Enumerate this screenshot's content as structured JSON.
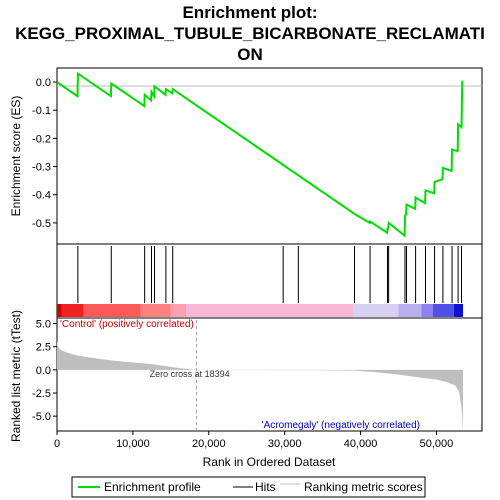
{
  "title_lines": [
    "Enrichment plot:",
    "KEGG_PROXIMAL_TUBULE_BICARBONATE_RECLAMATI",
    "ON"
  ],
  "colors": {
    "enrichment_line": "#00dd00",
    "hits": "#000000",
    "metric_fill": "#bebebe",
    "positive_label": "#cc0000",
    "negative_label": "#0000cc"
  },
  "chart_data": [
    {
      "type": "line",
      "panel": "enrichment",
      "ylabel": "Enrichment score (ES)",
      "ylim": [
        -0.575,
        0.05
      ],
      "yticks": [
        "0.0",
        "-0.1",
        "-0.2",
        "-0.3",
        "-0.4",
        "-0.5"
      ],
      "ytick_values": [
        0.0,
        -0.1,
        -0.2,
        -0.3,
        -0.4,
        -0.5
      ],
      "x": [
        0,
        2700,
        2750,
        7100,
        7150,
        11500,
        11550,
        12400,
        12450,
        12800,
        12850,
        14300,
        14350,
        15200,
        15250,
        39300,
        41200,
        41250,
        43500,
        43550,
        43650,
        43700,
        45800,
        45850,
        46000,
        46050,
        47200,
        47250,
        48500,
        48550,
        49700,
        49750,
        50800,
        50850,
        52000,
        52050,
        52800,
        52850,
        53300,
        53400
      ],
      "y": [
        0.0,
        -0.05,
        0.03,
        -0.05,
        -0.005,
        -0.085,
        -0.045,
        -0.065,
        -0.035,
        -0.05,
        -0.015,
        -0.045,
        -0.025,
        -0.04,
        -0.025,
        -0.47,
        -0.5,
        -0.495,
        -0.535,
        -0.52,
        -0.52,
        -0.5,
        -0.545,
        -0.475,
        -0.47,
        -0.435,
        -0.45,
        -0.41,
        -0.43,
        -0.385,
        -0.395,
        -0.355,
        -0.345,
        -0.305,
        -0.315,
        -0.24,
        -0.245,
        -0.15,
        -0.16,
        0.005
      ]
    },
    {
      "type": "scatter",
      "panel": "hits",
      "x": [
        2750,
        7150,
        11550,
        12450,
        12850,
        14350,
        15250,
        29800,
        31800,
        39200,
        41250,
        43550,
        43700,
        45850,
        46050,
        47250,
        48550,
        49750,
        50850,
        52050,
        52850,
        53300
      ]
    },
    {
      "type": "area",
      "panel": "ranked_metric",
      "xlabel": "Rank in Ordered Dataset",
      "ylabel": "Ranked list metric (tTest)",
      "xlim": [
        0,
        56000
      ],
      "ylim": [
        -6.6,
        5.6
      ],
      "xticks": [
        "0",
        "10,000",
        "20,000",
        "30,000",
        "40,000",
        "50,000"
      ],
      "xtick_values": [
        0,
        10000,
        20000,
        30000,
        40000,
        50000
      ],
      "yticks": [
        "5.0",
        "2.5",
        "0.0",
        "-2.5",
        "-5.0"
      ],
      "ytick_values": [
        5.0,
        2.5,
        0.0,
        -2.5,
        -5.0
      ],
      "x": [
        0,
        100,
        300,
        600,
        1000,
        2000,
        3000,
        4500,
        6000,
        8000,
        10000,
        12000,
        14000,
        16000,
        18394,
        20000,
        25000,
        30000,
        35000,
        39000,
        42000,
        45000,
        48000,
        50000,
        51500,
        52500,
        53000,
        53300,
        53500
      ],
      "y": [
        3.2,
        2.6,
        2.3,
        2.1,
        1.95,
        1.7,
        1.5,
        1.3,
        1.15,
        0.95,
        0.8,
        0.65,
        0.45,
        0.2,
        0.0,
        -0.02,
        -0.03,
        -0.04,
        -0.05,
        -0.08,
        -0.25,
        -0.5,
        -0.85,
        -1.05,
        -1.35,
        -1.7,
        -2.4,
        -4.0,
        -6.5
      ],
      "zero_cross_label": "Zero cross at 18394",
      "positive_label": "'Control' (positively correlated)",
      "negative_label": "'Acromegaly' (negatively correlated)"
    }
  ],
  "legend": {
    "items": [
      {
        "label": "Enrichment profile",
        "color": "#00dd00"
      },
      {
        "label": "Hits",
        "color": "#000000"
      },
      {
        "label": "Ranking metric scores",
        "color": "#bebebe"
      }
    ]
  }
}
